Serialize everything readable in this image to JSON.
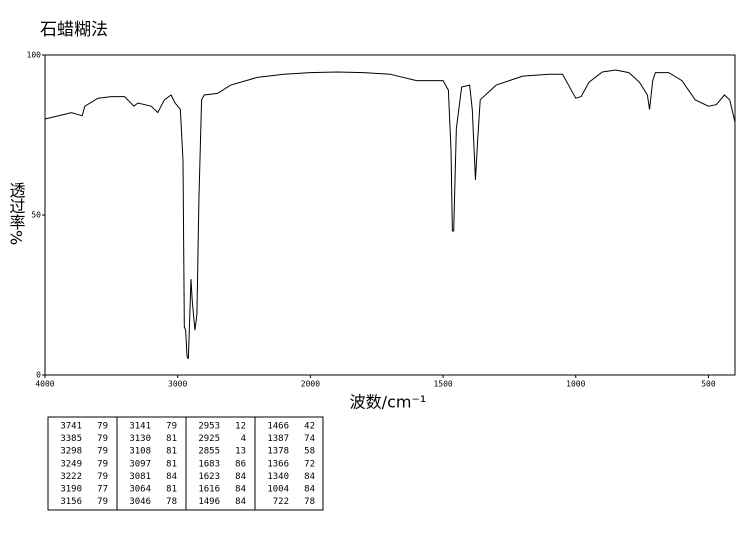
{
  "chart_data": {
    "type": "line",
    "title": "石蜡糊法",
    "xlabel": "波数/cm⁻¹",
    "ylabel": "透过率%",
    "color": "#000000",
    "xlim": [
      4000,
      400
    ],
    "xticks": [
      4000,
      3000,
      2000,
      1500,
      1000,
      500
    ],
    "ylim": [
      0,
      100
    ],
    "yticks": [
      0,
      50,
      100
    ],
    "grid": false,
    "x": [
      4000,
      3800,
      3720,
      3700,
      3600,
      3500,
      3400,
      3330,
      3300,
      3200,
      3150,
      3100,
      3050,
      3020,
      2980,
      2960,
      2950,
      2940,
      2930,
      2920,
      2910,
      2900,
      2890,
      2870,
      2855,
      2840,
      2820,
      2800,
      2700,
      2600,
      2400,
      2200,
      2000,
      1900,
      1800,
      1700,
      1600,
      1500,
      1480,
      1470,
      1465,
      1460,
      1450,
      1430,
      1400,
      1390,
      1378,
      1370,
      1360,
      1300,
      1200,
      1100,
      1050,
      1000,
      980,
      950,
      900,
      850,
      800,
      760,
      730,
      722,
      710,
      700,
      650,
      600,
      550,
      500,
      470,
      440,
      420,
      400
    ],
    "values": [
      80,
      82,
      81,
      84,
      86.5,
      87,
      87,
      84,
      85,
      84,
      82,
      86,
      87.5,
      85,
      83,
      67,
      15,
      14,
      6,
      5,
      17,
      30,
      23,
      14,
      19,
      55,
      86,
      87.5,
      88,
      90.6,
      93,
      94,
      94.5,
      94.7,
      94.5,
      94,
      92,
      92,
      89,
      70,
      45,
      45,
      77,
      90,
      90.6,
      83,
      61,
      73,
      86,
      90.6,
      93.4,
      94,
      94,
      86.5,
      87,
      91.5,
      94.7,
      95.3,
      94.5,
      91.5,
      87.5,
      83,
      92,
      94.5,
      94.5,
      92,
      86,
      84,
      84.5,
      87.5,
      86,
      79
    ]
  },
  "peak_table": {
    "rows": [
      [
        3741,
        79
      ],
      [
        3385,
        79
      ],
      [
        3298,
        79
      ],
      [
        3249,
        79
      ],
      [
        3222,
        79
      ],
      [
        3190,
        77
      ],
      [
        3156,
        79
      ],
      [
        3141,
        79
      ],
      [
        3130,
        81
      ],
      [
        3108,
        81
      ],
      [
        3097,
        81
      ],
      [
        3081,
        84
      ],
      [
        3064,
        81
      ],
      [
        3046,
        78
      ],
      [
        2953,
        12
      ],
      [
        2925,
        4
      ],
      [
        2855,
        13
      ],
      [
        1683,
        86
      ],
      [
        1623,
        84
      ],
      [
        1616,
        84
      ],
      [
        1496,
        84
      ],
      [
        1466,
        42
      ],
      [
        1387,
        74
      ],
      [
        1378,
        58
      ],
      [
        1366,
        72
      ],
      [
        1340,
        84
      ],
      [
        1004,
        84
      ],
      [
        722,
        78
      ]
    ]
  }
}
